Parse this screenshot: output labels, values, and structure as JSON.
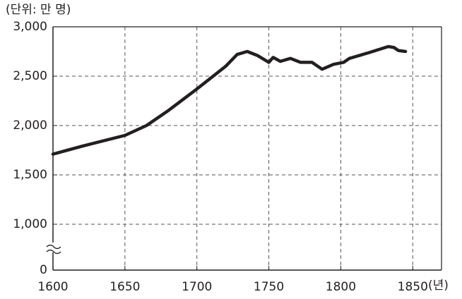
{
  "chart_data": {
    "type": "line",
    "y_unit_label": "(단위: 만 명)",
    "x_unit_label": "(년)",
    "axis_break": true,
    "grid": true,
    "x": [
      1600,
      1620,
      1650,
      1665,
      1680,
      1700,
      1720,
      1728,
      1735,
      1742,
      1750,
      1753,
      1758,
      1765,
      1772,
      1780,
      1787,
      1795,
      1802,
      1806,
      1820,
      1833,
      1837,
      1840,
      1845
    ],
    "series": [
      {
        "color": "#231f20",
        "values": [
          1710,
          1790,
          1900,
          2000,
          2150,
          2370,
          2600,
          2720,
          2750,
          2710,
          2640,
          2690,
          2650,
          2680,
          2640,
          2640,
          2570,
          2620,
          2640,
          2680,
          2740,
          2800,
          2790,
          2760,
          2750
        ]
      }
    ],
    "xlim": [
      1600,
      1870
    ],
    "xticks": [
      1600,
      1650,
      1700,
      1750,
      1800,
      1850
    ],
    "ylim": [
      0,
      3000
    ],
    "yticks": [
      0,
      {
        "value": 1000,
        "label": "1,000"
      },
      {
        "value": 1500,
        "label": "1,500"
      },
      {
        "value": 2000,
        "label": "2,000"
      },
      {
        "value": 2500,
        "label": "2,500"
      },
      {
        "value": 3000,
        "label": "3,000"
      }
    ]
  }
}
